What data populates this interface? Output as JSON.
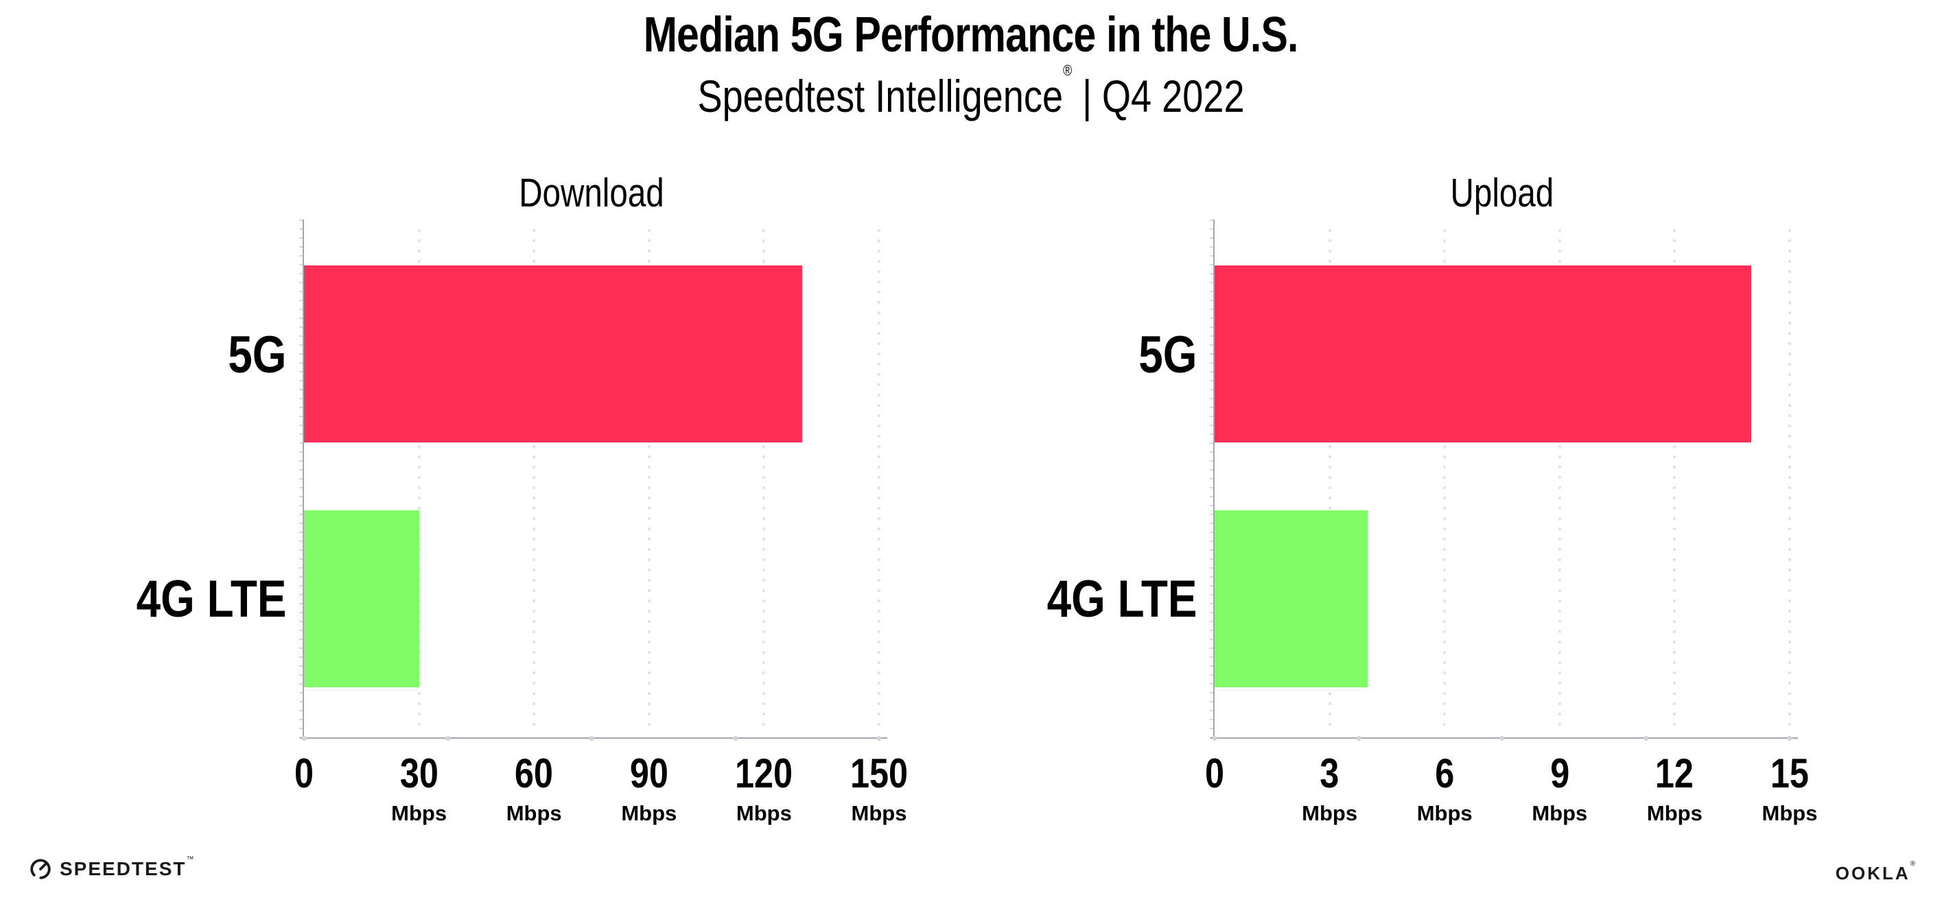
{
  "header": {
    "title": "Median 5G Performance in the U.S.",
    "subtitle_brand": "Speedtest Intelligence",
    "subtitle_reg": "®",
    "subtitle_divider": "|",
    "subtitle_period": "Q4 2022"
  },
  "footer": {
    "speedtest_label": "SPEEDTEST",
    "speedtest_mark": "™",
    "ookla_label": "OOKLA",
    "ookla_mark": "®"
  },
  "colors": {
    "bar_5g": "#FF2E54",
    "bar_4g_lte": "#7FFC66",
    "axis": "#A6A6AE",
    "gridline": "#E3E3EC",
    "text": "#000000"
  },
  "chart_data": [
    {
      "type": "bar",
      "orientation": "horizontal",
      "title": "Download",
      "categories": [
        "5G",
        "4G LTE"
      ],
      "values": [
        130,
        30
      ],
      "unit": "Mbps",
      "xlabel": "",
      "ylabel": "",
      "xlim": [
        0,
        150
      ],
      "xticks": [
        0,
        30,
        60,
        90,
        120,
        150
      ],
      "bar_colors": [
        "#FF2E54",
        "#7FFC66"
      ],
      "grid": "dotted-vertical",
      "legend": "none"
    },
    {
      "type": "bar",
      "orientation": "horizontal",
      "title": "Upload",
      "categories": [
        "5G",
        "4G LTE"
      ],
      "values": [
        14,
        4
      ],
      "unit": "Mbps",
      "xlabel": "",
      "ylabel": "",
      "xlim": [
        0,
        15
      ],
      "xticks": [
        0,
        3,
        6,
        9,
        12,
        15
      ],
      "bar_colors": [
        "#FF2E54",
        "#7FFC66"
      ],
      "grid": "dotted-vertical",
      "legend": "none"
    }
  ]
}
